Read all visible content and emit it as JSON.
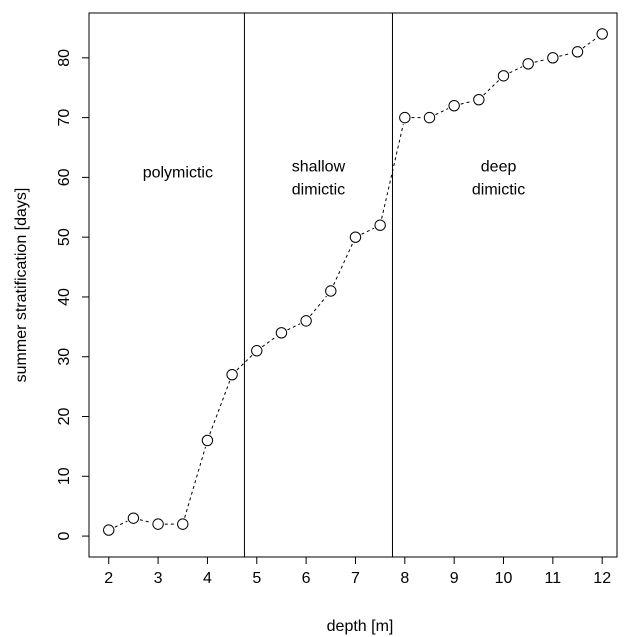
{
  "chart_data": {
    "type": "scatter",
    "title": "",
    "xlabel": "depth [m]",
    "ylabel": "summer stratification [days]",
    "xlim": [
      1.6,
      12.3
    ],
    "ylim": [
      -3.5,
      87.5
    ],
    "x_ticks": [
      2,
      3,
      4,
      5,
      6,
      7,
      8,
      9,
      10,
      11,
      12
    ],
    "y_ticks": [
      0,
      10,
      20,
      30,
      40,
      50,
      60,
      70,
      80
    ],
    "grid": false,
    "series": [
      {
        "marker": "open-circle",
        "line_style": "dashed",
        "color": "#000000",
        "x": [
          2,
          2.5,
          3,
          3.5,
          4,
          4.5,
          5,
          5.5,
          6,
          6.5,
          7,
          7.5,
          8,
          8.5,
          9,
          9.5,
          10,
          10.5,
          11,
          11.5,
          12
        ],
        "y": [
          1,
          3,
          2,
          2,
          16,
          27,
          31,
          34,
          36,
          41,
          50,
          52,
          70,
          70,
          72,
          73,
          77,
          79,
          80,
          81,
          84
        ]
      }
    ],
    "vlines": [
      4.75,
      7.75
    ],
    "regions": [
      {
        "lines": [
          "polymictic"
        ],
        "x": 3.4,
        "y": 60
      },
      {
        "lines": [
          "shallow",
          "dimictic"
        ],
        "x": 6.25,
        "y": 61
      },
      {
        "lines": [
          "deep",
          "dimictic"
        ],
        "x": 9.9,
        "y": 61
      }
    ]
  }
}
